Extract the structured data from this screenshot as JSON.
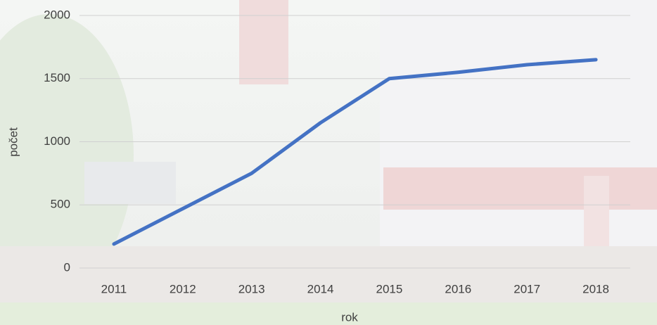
{
  "chart_data": {
    "type": "line",
    "categories": [
      "2011",
      "2012",
      "2013",
      "2014",
      "2015",
      "2016",
      "2017",
      "2018"
    ],
    "values": [
      190,
      470,
      750,
      1150,
      1500,
      1550,
      1610,
      1650
    ],
    "color": "#4472c4",
    "xlabel": "rok",
    "ylabel": "počet",
    "ylim": [
      0,
      2000
    ],
    "yticks": [
      0,
      500,
      1000,
      1500,
      2000
    ],
    "grid": true
  }
}
